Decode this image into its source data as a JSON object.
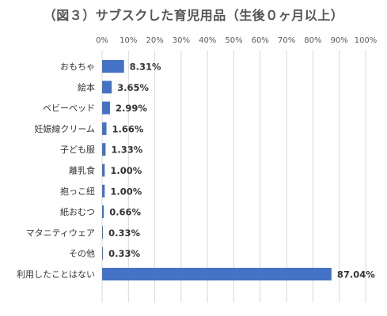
{
  "chart_data": {
    "type": "bar",
    "orientation": "horizontal",
    "title": "（図３）サブスクした育児用品（生後０ヶ月以上）",
    "xlim": [
      0,
      100
    ],
    "xticks": [
      "0%",
      "10%",
      "20%",
      "30%",
      "40%",
      "50%",
      "60%",
      "70%",
      "80%",
      "90%",
      "100%"
    ],
    "grid": true,
    "categories": [
      "おもちゃ",
      "絵本",
      "ベビーベッド",
      "妊娠線クリーム",
      "子ども服",
      "離乳食",
      "抱っこ紐",
      "紙おむつ",
      "マタニティウェア",
      "その他",
      "利用したことはない"
    ],
    "values": [
      8.31,
      3.65,
      2.99,
      1.66,
      1.33,
      1.0,
      1.0,
      0.66,
      0.33,
      0.33,
      87.04
    ],
    "value_labels": [
      "8.31%",
      "3.65%",
      "2.99%",
      "1.66%",
      "1.33%",
      "1.00%",
      "1.00%",
      "0.66%",
      "0.33%",
      "0.33%",
      "87.04%"
    ],
    "bar_color": "#4472C4",
    "grid_color": "#D9D9D9"
  }
}
